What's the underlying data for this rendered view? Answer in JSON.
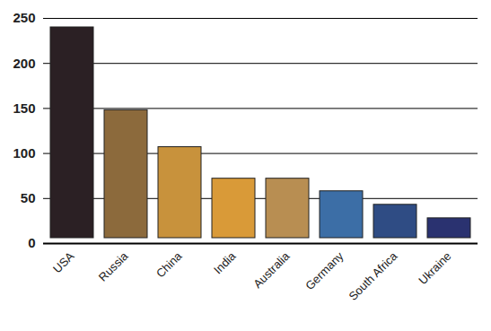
{
  "chart_data": {
    "type": "bar",
    "categories": [
      "USA",
      "Russia",
      "China",
      "India",
      "Australia",
      "Germany",
      "South Africa",
      "Ukraine"
    ],
    "values": [
      246,
      154,
      113,
      78,
      78,
      64,
      49,
      34
    ],
    "colors": [
      "#2b2024",
      "#8c6a3c",
      "#c8923c",
      "#d99a38",
      "#b88e52",
      "#3c6ea6",
      "#2f4c84",
      "#2a3270"
    ],
    "ylim": [
      0,
      250
    ],
    "yticks": [
      0,
      50,
      100,
      150,
      200,
      250
    ],
    "grid": true
  }
}
